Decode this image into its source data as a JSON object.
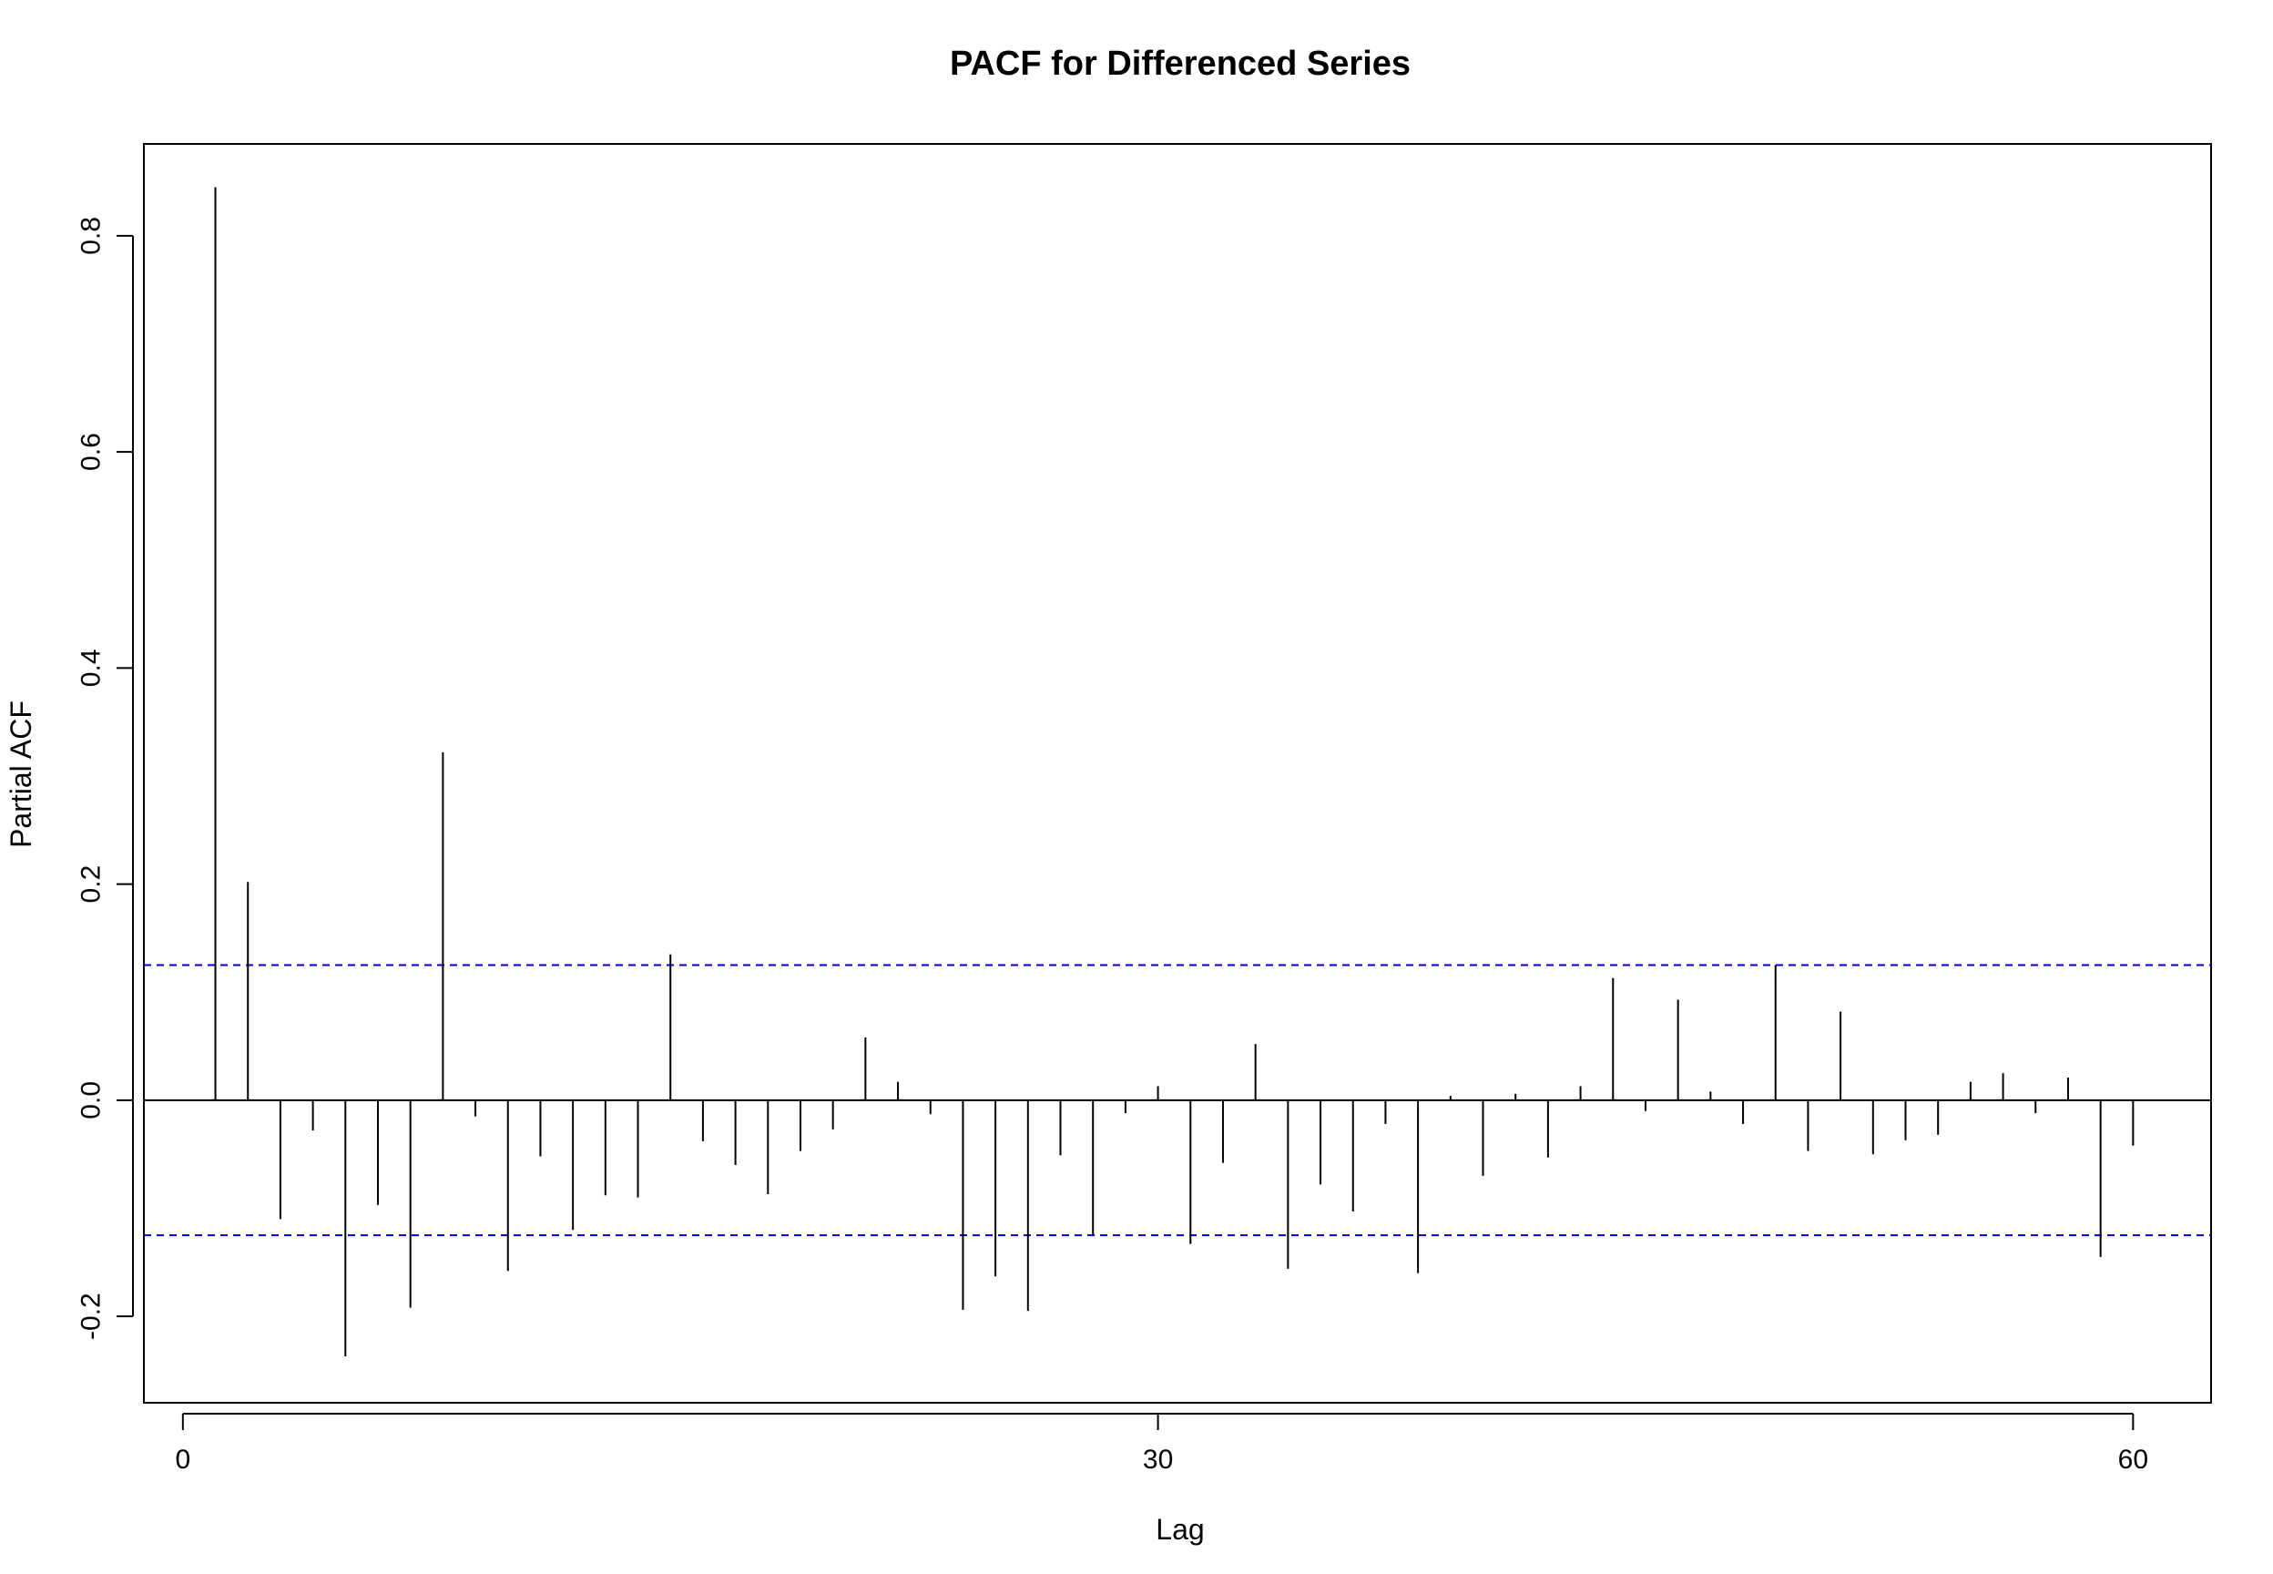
{
  "chart_data": {
    "type": "bar",
    "title": "PACF for Differenced Series",
    "xlabel": "Lag",
    "ylabel": "Partial ACF",
    "xlim": [
      -1.2,
      62.4
    ],
    "ylim": [
      -0.28,
      0.885
    ],
    "x_ticks": [
      0,
      30,
      60
    ],
    "x_tick_labels": [
      "0",
      "30",
      "60"
    ],
    "y_ticks": [
      -0.2,
      0.0,
      0.2,
      0.4,
      0.6,
      0.8
    ],
    "y_tick_labels": [
      "-0.2",
      "0.0",
      "0.2",
      "0.4",
      "0.6",
      "0.8"
    ],
    "grid": false,
    "confidence_band": 0.125,
    "colors": {
      "bars": "#000000",
      "confidence": "#0000cc",
      "axis": "#000000",
      "zero_line": "#000000"
    },
    "lags": [
      1,
      2,
      3,
      4,
      5,
      6,
      7,
      8,
      9,
      10,
      11,
      12,
      13,
      14,
      15,
      16,
      17,
      18,
      19,
      20,
      21,
      22,
      23,
      24,
      25,
      26,
      27,
      28,
      29,
      30,
      31,
      32,
      33,
      34,
      35,
      36,
      37,
      38,
      39,
      40,
      41,
      42,
      43,
      44,
      45,
      46,
      47,
      48,
      49,
      50,
      51,
      52,
      53,
      54,
      55,
      56,
      57,
      58,
      59,
      60
    ],
    "values": [
      0.845,
      0.202,
      -0.11,
      -0.028,
      -0.237,
      -0.097,
      -0.192,
      0.322,
      -0.015,
      -0.158,
      -0.052,
      -0.12,
      -0.088,
      -0.09,
      0.135,
      -0.038,
      -0.06,
      -0.087,
      -0.047,
      -0.027,
      0.058,
      0.017,
      -0.013,
      -0.194,
      -0.163,
      -0.195,
      -0.051,
      -0.125,
      -0.012,
      0.013,
      -0.133,
      -0.058,
      0.052,
      -0.156,
      -0.078,
      -0.103,
      -0.022,
      -0.16,
      0.004,
      -0.07,
      0.006,
      -0.053,
      0.013,
      0.113,
      -0.01,
      0.093,
      0.008,
      -0.022,
      0.125,
      -0.047,
      0.082,
      -0.05,
      -0.037,
      -0.032,
      0.017,
      0.025,
      -0.012,
      0.021,
      -0.145,
      -0.042
    ]
  }
}
